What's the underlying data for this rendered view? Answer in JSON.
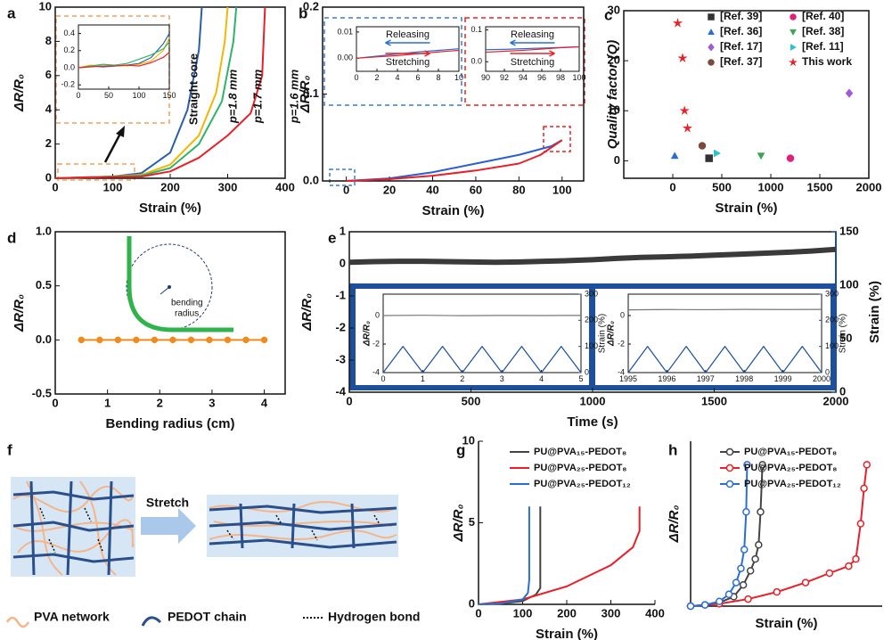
{
  "chart_data": [
    {
      "type": "line",
      "panel": "a",
      "xlabel": "Strain (%)",
      "ylabel": "ΔR/R₀",
      "xlim": [
        0,
        400
      ],
      "xticks": [
        0,
        100,
        200,
        300,
        400
      ],
      "ylim": [
        0,
        10
      ],
      "yticks": [
        0,
        2,
        4,
        6,
        8,
        10
      ],
      "series": [
        {
          "name": "Straight core",
          "color": "#2a5fa8",
          "x": [
            0,
            50,
            100,
            150,
            200,
            230,
            250,
            255
          ],
          "values": [
            0,
            0.05,
            0.1,
            0.3,
            1.5,
            4,
            7.5,
            10
          ]
        },
        {
          "name": "p=1.8 mm",
          "color": "#f2b705",
          "x": [
            0,
            50,
            100,
            150,
            200,
            250,
            280,
            295,
            300
          ],
          "values": [
            0,
            0.05,
            0.1,
            0.2,
            0.8,
            2.5,
            5,
            8,
            10
          ]
        },
        {
          "name": "p=1.7 mm",
          "color": "#2fb36a",
          "x": [
            0,
            50,
            100,
            150,
            200,
            250,
            290,
            310,
            315
          ],
          "values": [
            0,
            0.05,
            0.1,
            0.15,
            0.6,
            2,
            4.5,
            8,
            10
          ]
        },
        {
          "name": "p=1.6 mm",
          "color": "#e8202a",
          "x": [
            0,
            50,
            100,
            150,
            200,
            250,
            300,
            340,
            360,
            365
          ],
          "values": [
            0,
            0.05,
            0.08,
            0.1,
            0.4,
            1.2,
            2.5,
            3.8,
            6,
            10
          ]
        }
      ]
    },
    {
      "type": "line",
      "xlim": [
        0,
        150
      ],
      "xticks": [
        0,
        50,
        100,
        150
      ],
      "ylim": [
        -0.25,
        0.5
      ],
      "yticks": [
        -0.2,
        {
          "value": 0,
          "label": "0.0"
        },
        0.2,
        0.4
      ],
      "series": [
        {
          "color": "#2a5fa8",
          "x": [
            0,
            20,
            40,
            60,
            80,
            100,
            120,
            140,
            150
          ],
          "values": [
            0,
            0.02,
            0.01,
            0.02,
            0.03,
            0.05,
            0.12,
            0.28,
            0.4
          ]
        },
        {
          "color": "#f2b705",
          "x": [
            0,
            20,
            40,
            60,
            80,
            100,
            120,
            140,
            150
          ],
          "values": [
            0,
            0.03,
            0.02,
            0.03,
            0.02,
            0.04,
            0.08,
            0.2,
            0.35
          ]
        },
        {
          "color": "#2fb36a",
          "x": [
            0,
            20,
            40,
            60,
            80,
            100,
            120,
            140,
            150
          ],
          "values": [
            0,
            0.02,
            0.04,
            0.03,
            0.05,
            0.1,
            0.15,
            0.22,
            0.3
          ]
        },
        {
          "color": "#e8202a",
          "x": [
            0,
            20,
            40,
            60,
            80,
            100,
            120,
            140,
            150
          ],
          "values": [
            0,
            0.01,
            0.02,
            0.02,
            0.03,
            0.02,
            0.06,
            0.12,
            0.18
          ]
        }
      ]
    },
    {
      "type": "line",
      "panel": "b",
      "xlabel": "Strain (%)",
      "ylabel": "ΔR/R₀",
      "xlim": [
        -11,
        110
      ],
      "xticks": [
        0,
        20,
        40,
        60,
        80,
        100
      ],
      "ylim": [
        0,
        0.2
      ],
      "yticks": [
        {
          "value": 0,
          "label": "0.0"
        },
        0.1,
        0.2
      ],
      "series": [
        {
          "color": "#2a5fd0",
          "x": [
            0,
            20,
            40,
            60,
            80,
            95,
            100
          ],
          "values": [
            0,
            0.003,
            0.01,
            0.02,
            0.03,
            0.04,
            0.047
          ]
        },
        {
          "color": "#e8202a",
          "x": [
            0,
            20,
            40,
            60,
            80,
            90,
            100
          ],
          "values": [
            0,
            0.002,
            0.006,
            0.012,
            0.02,
            0.03,
            0.047
          ]
        }
      ]
    },
    {
      "type": "line",
      "xlim": [
        0,
        10
      ],
      "xticks": [
        0,
        2,
        4,
        6,
        8,
        10
      ],
      "ylim": [
        -0.005,
        0.012
      ],
      "yticks": [
        {
          "value": 0,
          "label": "0.00"
        },
        0.01
      ],
      "series": [
        {
          "name": "Releasing",
          "color": "#2a6fd0",
          "x": [
            0,
            2,
            4,
            6,
            8,
            10
          ],
          "values": [
            0,
            0.0008,
            0.0016,
            0.0024,
            0.003,
            0.0036
          ]
        },
        {
          "name": "Stretching",
          "color": "#e8202a",
          "x": [
            0,
            2,
            4,
            6,
            8,
            10
          ],
          "values": [
            0,
            0.0005,
            0.001,
            0.0017,
            0.0024,
            0.003
          ]
        }
      ]
    },
    {
      "type": "line",
      "xlim": [
        90,
        100
      ],
      "xticks": [
        90,
        92,
        94,
        96,
        98,
        100
      ],
      "ylim": [
        -0.03,
        0.11
      ],
      "yticks": [
        {
          "value": 0,
          "label": "0.0"
        },
        0.1
      ],
      "series": [
        {
          "name": "Releasing",
          "color": "#2a6fd0",
          "x": [
            90,
            92,
            94,
            96,
            98,
            100
          ],
          "values": [
            0.038,
            0.039,
            0.041,
            0.043,
            0.045,
            0.047
          ]
        },
        {
          "name": "Stretching",
          "color": "#e8202a",
          "x": [
            90,
            92,
            94,
            96,
            98,
            100
          ],
          "values": [
            0.03,
            0.033,
            0.036,
            0.04,
            0.044,
            0.047
          ]
        }
      ]
    },
    {
      "type": "scatter",
      "panel": "c",
      "xlabel": "Strain (%)",
      "ylabel": "Quality factor (Q)",
      "xlim": [
        -500,
        2000
      ],
      "xticks": [
        0,
        500,
        1000,
        1500,
        2000
      ],
      "ylim": [
        -3.5,
        30
      ],
      "yticks": [
        0,
        10,
        20,
        30
      ],
      "series": [
        {
          "name": "[Ref. 39]",
          "color": "#333333",
          "marker": "square",
          "x": [
            370
          ],
          "values": [
            0.5
          ]
        },
        {
          "name": "[Ref. 40]",
          "color": "#e0207a",
          "marker": "circle",
          "x": [
            1200
          ],
          "values": [
            0.5
          ]
        },
        {
          "name": "[Ref. 36]",
          "color": "#2a6fd0",
          "marker": "triangle",
          "x": [
            20
          ],
          "values": [
            1
          ]
        },
        {
          "name": "[Ref. 38]",
          "color": "#3aa655",
          "marker": "tri_down",
          "x": [
            900
          ],
          "values": [
            1
          ]
        },
        {
          "name": "[Ref. 17]",
          "color": "#a05ad8",
          "marker": "diamond",
          "x": [
            1800
          ],
          "values": [
            13.5
          ]
        },
        {
          "name": "[Ref. 11]",
          "color": "#27c4d0",
          "marker": "tri_right",
          "x": [
            450
          ],
          "values": [
            1.5
          ]
        },
        {
          "name": "[Ref. 37]",
          "color": "#7a4a3a",
          "marker": "circle",
          "x": [
            300
          ],
          "values": [
            3
          ]
        },
        {
          "name": "This work",
          "color": "#e8202a",
          "marker": "star",
          "x": [
            50,
            100,
            120,
            150
          ],
          "values": [
            27.5,
            20.5,
            10,
            6.5
          ]
        }
      ]
    },
    {
      "type": "line",
      "panel": "d",
      "xlabel": "Bending radius (cm)",
      "ylabel": "ΔR/R₀",
      "xlim": [
        0,
        4.4
      ],
      "xticks": [
        0,
        1,
        2,
        3,
        4
      ],
      "ylim": [
        -0.5,
        1
      ],
      "yticks": [
        {
          "value": -0.5,
          "label": "-0.5"
        },
        {
          "value": 0,
          "label": "0.0"
        },
        {
          "value": 0.5,
          "label": "0.5"
        },
        {
          "value": 1,
          "label": "1.0"
        }
      ],
      "annotations": [
        "bending",
        "radius"
      ],
      "series": [
        {
          "color": "#f08a1c",
          "marker": "circle",
          "x": [
            0.5,
            0.85,
            1.2,
            1.55,
            1.9,
            2.25,
            2.6,
            2.95,
            3.3,
            3.65,
            4
          ],
          "values": [
            0,
            0,
            0,
            0,
            0,
            0,
            0,
            0,
            0,
            0,
            0
          ]
        }
      ]
    },
    {
      "type": "line",
      "panel": "e",
      "xlabel": "Time (s)",
      "ylabel": "ΔR/R₀",
      "y2label": "Strain (%)",
      "xlim": [
        0,
        2000
      ],
      "xticks": [
        0,
        500,
        1000,
        1500,
        2000
      ],
      "ylim": [
        -4,
        1
      ],
      "yticks": [
        1,
        0,
        -1,
        -2,
        -3,
        -4
      ],
      "y2lim": [
        0,
        150
      ],
      "y2ticks": [
        0,
        50,
        100,
        150
      ],
      "series": [
        {
          "color": "#3a3a3a",
          "x": [
            0,
            100,
            200,
            300,
            400,
            500,
            600,
            700,
            800,
            900,
            1000,
            1100,
            1200,
            1300,
            1400,
            1500,
            1600,
            1700,
            1800,
            1900,
            2000
          ],
          "values": [
            0.05,
            0.07,
            0.08,
            0.08,
            0.07,
            0.06,
            0.05,
            0.06,
            0.08,
            0.1,
            0.13,
            0.17,
            0.2,
            0.22,
            0.24,
            0.27,
            0.3,
            0.33,
            0.36,
            0.4,
            0.45
          ]
        }
      ]
    },
    {
      "type": "line",
      "ylabel": "ΔR/R₀",
      "y2label": "Strain (%)",
      "xlim": [
        0,
        5
      ],
      "xticks": [
        0,
        1,
        2,
        3,
        4,
        5
      ],
      "ylim": [
        -4,
        1.5
      ],
      "yticks": [
        0,
        -2,
        -4
      ],
      "y2lim": [
        0,
        300
      ],
      "y2ticks": [
        0,
        100,
        200,
        300
      ],
      "series": [
        {
          "color": "#777777",
          "x": [
            0,
            1,
            2,
            3,
            4,
            5
          ],
          "values": [
            0,
            0.02,
            -0.01,
            0.01,
            0,
            0.01
          ]
        },
        {
          "color": "#1e4f9b",
          "axis": "y2",
          "x": [
            0,
            0.5,
            1,
            1.5,
            2,
            2.5,
            3,
            3.5,
            4,
            4.5,
            5
          ],
          "values": [
            0,
            100,
            0,
            100,
            0,
            100,
            0,
            100,
            0,
            100,
            0
          ]
        }
      ]
    },
    {
      "type": "line",
      "ylabel": "ΔR/R₀",
      "y2label": "Strain (%)",
      "xlim": [
        1995,
        2000
      ],
      "xticks": [
        1995,
        1996,
        1997,
        1998,
        1999,
        2000
      ],
      "ylim": [
        -4,
        1.5
      ],
      "yticks": [
        0,
        -2,
        -4
      ],
      "y2lim": [
        0,
        300
      ],
      "y2ticks": [
        0,
        100,
        200,
        300
      ],
      "series": [
        {
          "color": "#777777",
          "x": [
            1995,
            1996,
            1997,
            1998,
            1999,
            2000
          ],
          "values": [
            0.4,
            0.42,
            0.41,
            0.43,
            0.42,
            0.43
          ]
        },
        {
          "color": "#1e4f9b",
          "axis": "y2",
          "x": [
            1995,
            1995.5,
            1996,
            1996.5,
            1997,
            1997.5,
            1998,
            1998.5,
            1999,
            1999.5,
            2000
          ],
          "values": [
            0,
            100,
            0,
            100,
            0,
            100,
            0,
            100,
            0,
            100,
            0
          ]
        }
      ]
    },
    {
      "type": "line",
      "panel": "g",
      "xlabel": "Strain (%)",
      "ylabel": "ΔR/R₀",
      "xlim": [
        0,
        400
      ],
      "xticks": [
        0,
        100,
        200,
        300,
        400
      ],
      "ylim": [
        0,
        10
      ],
      "yticks": [
        0,
        5,
        10
      ],
      "series": [
        {
          "name": "PU@PVA₁₅-PEDOT₈",
          "color": "#444444",
          "x": [
            0,
            50,
            100,
            130,
            140,
            140
          ],
          "values": [
            0,
            0.05,
            0.2,
            0.6,
            1,
            6
          ]
        },
        {
          "name": "PU@PVA₂₅-PEDOT₈",
          "color": "#e8202a",
          "x": [
            0,
            100,
            200,
            300,
            350,
            365,
            365
          ],
          "values": [
            0,
            0.3,
            1.1,
            2.4,
            3.5,
            4.5,
            6
          ]
        },
        {
          "name": "PU@PVA₂₅-PEDOT₁₂",
          "color": "#2a6fd0",
          "x": [
            0,
            50,
            100,
            112,
            115,
            115
          ],
          "values": [
            0,
            0.05,
            0.3,
            0.7,
            1.5,
            6
          ]
        }
      ]
    },
    {
      "type": "line",
      "panel": "h",
      "xlabel": "Strain (%)",
      "ylabel": "ΔR/R₀",
      "xlim": [
        0,
        400
      ],
      "ylim": [
        0,
        7
      ],
      "series": [
        {
          "name": "PU@PVA₁₅-PEDOT₈",
          "color": "#444444",
          "marker": "circle",
          "x": [
            0,
            30,
            60,
            90,
            110,
            125,
            135,
            142,
            146,
            150
          ],
          "values": [
            0,
            0.05,
            0.15,
            0.4,
            0.9,
            1.5,
            2,
            2.6,
            4,
            6
          ]
        },
        {
          "name": "PU@PVA₂₅-PEDOT₈",
          "color": "#e8202a",
          "marker": "circle",
          "x": [
            0,
            60,
            120,
            180,
            240,
            290,
            330,
            345,
            355,
            362,
            368
          ],
          "values": [
            0,
            0.1,
            0.3,
            0.6,
            1,
            1.4,
            1.7,
            2,
            3.5,
            5,
            6
          ]
        },
        {
          "name": "PU@PVA₂₅-PEDOT₁₂",
          "color": "#2a6fd0",
          "marker": "circle",
          "x": [
            0,
            30,
            60,
            80,
            95,
            105,
            112,
            116,
            118
          ],
          "values": [
            0,
            0.05,
            0.2,
            0.5,
            1,
            1.6,
            2.4,
            4,
            6
          ]
        }
      ]
    }
  ],
  "diagram_f": {
    "panel": "f",
    "arrow_label": "Stretch",
    "legend": [
      "PVA network",
      "PEDOT chain",
      "Hydrogen bond"
    ]
  }
}
